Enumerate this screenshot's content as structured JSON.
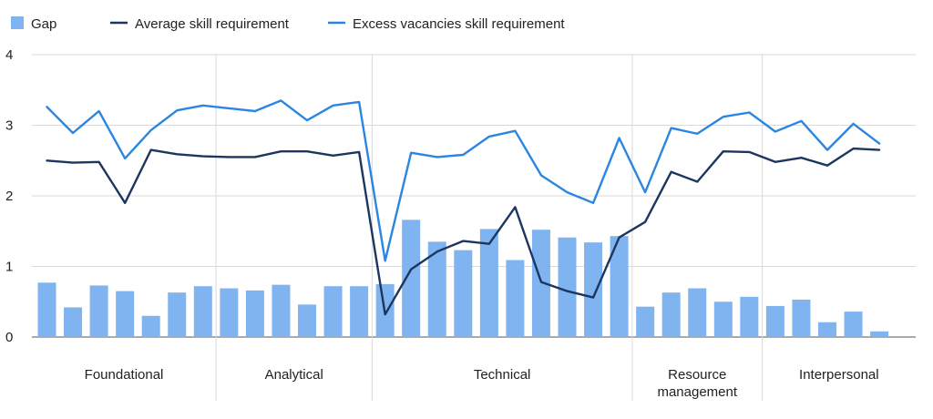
{
  "chart_data": {
    "type": "bar",
    "title": "",
    "xlabel": "",
    "ylabel": "",
    "ylim": [
      0,
      4
    ],
    "y_ticks": [
      "0",
      "1",
      "2",
      "3",
      "4"
    ],
    "grid": true,
    "legend_position": "top-left",
    "legend": [
      {
        "key": "gap",
        "label": "Gap"
      },
      {
        "key": "avg",
        "label": "Average skill requirement"
      },
      {
        "key": "excess",
        "label": "Excess vacancies skill requirement"
      }
    ],
    "groups": [
      {
        "lines": [
          "Foundational"
        ],
        "count": 7
      },
      {
        "lines": [
          "Analytical"
        ],
        "count": 6
      },
      {
        "lines": [
          "Technical"
        ],
        "count": 10
      },
      {
        "lines": [
          "Resource",
          "management"
        ],
        "count": 5
      },
      {
        "lines": [
          "Interpersonal"
        ],
        "count": 5
      }
    ],
    "series": [
      {
        "name": "Gap",
        "type": "bar",
        "color": "#7fb4f0",
        "values": [
          0.77,
          0.42,
          0.73,
          0.65,
          0.3,
          0.63,
          0.72,
          0.69,
          0.66,
          0.74,
          0.46,
          0.72,
          0.72,
          0.75,
          1.66,
          1.35,
          1.23,
          1.53,
          1.09,
          1.52,
          1.41,
          1.34,
          1.43,
          0.43,
          0.63,
          0.69,
          0.5,
          0.57,
          0.44,
          0.53,
          0.21,
          0.36,
          0.08
        ]
      },
      {
        "name": "Average skill requirement",
        "type": "line",
        "color": "#1c3660",
        "values": [
          2.5,
          2.47,
          2.48,
          1.9,
          2.65,
          2.59,
          2.56,
          2.55,
          2.55,
          2.63,
          2.63,
          2.57,
          2.62,
          0.32,
          0.96,
          1.21,
          1.36,
          1.32,
          1.84,
          0.78,
          0.65,
          0.56,
          1.41,
          1.63,
          2.34,
          2.2,
          2.63,
          2.62,
          2.48,
          2.54,
          2.43,
          2.67,
          2.65
        ]
      },
      {
        "name": "Excess vacancies skill requirement",
        "type": "line",
        "color": "#2a86e0",
        "values": [
          3.26,
          2.89,
          3.2,
          2.53,
          2.93,
          3.21,
          3.28,
          3.24,
          3.2,
          3.35,
          3.07,
          3.28,
          3.33,
          1.08,
          2.61,
          2.55,
          2.58,
          2.84,
          2.92,
          2.29,
          2.05,
          1.9,
          2.82,
          2.05,
          2.96,
          2.88,
          3.12,
          3.18,
          2.91,
          3.06,
          2.65,
          3.02,
          2.74
        ]
      }
    ]
  }
}
